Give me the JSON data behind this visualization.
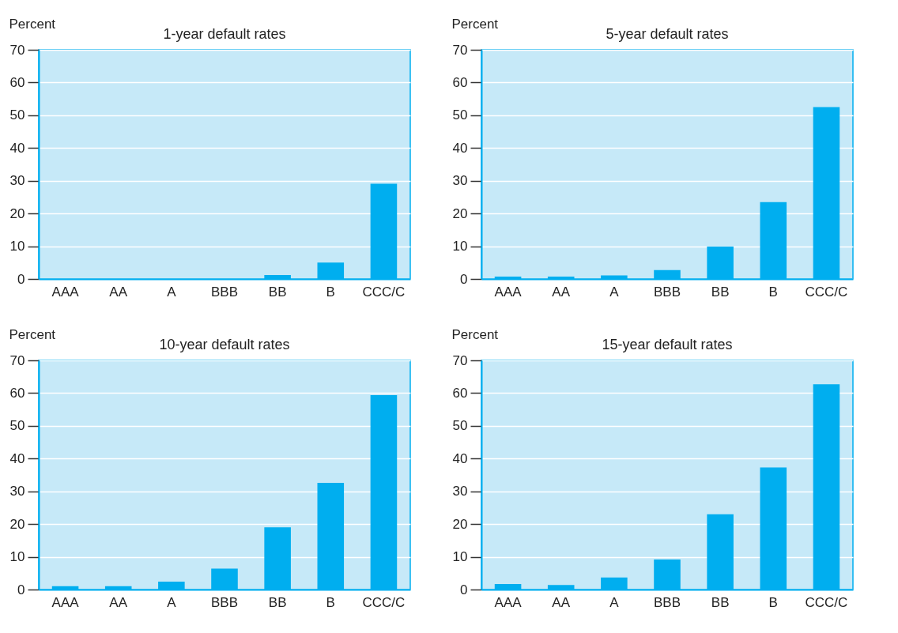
{
  "chart_data": [
    {
      "type": "bar",
      "title": "1-year default rates",
      "ylabel": "Percent",
      "categories": [
        "AAA",
        "AA",
        "A",
        "BBB",
        "BB",
        "B",
        "CCC/C"
      ],
      "values": [
        0,
        0,
        0,
        0,
        1.2,
        5.0,
        29.1
      ],
      "color": "#00aeef",
      "ylim": [
        0,
        70
      ],
      "yticks": [
        0,
        10,
        20,
        30,
        40,
        50,
        60,
        70
      ],
      "grid": "y"
    },
    {
      "type": "bar",
      "title": "5-year default rates",
      "ylabel": "Percent",
      "categories": [
        "AAA",
        "AA",
        "A",
        "BBB",
        "BB",
        "B",
        "CCC/C"
      ],
      "values": [
        0.7,
        0.7,
        1.1,
        2.7,
        9.9,
        23.5,
        52.5
      ],
      "color": "#00aeef",
      "ylim": [
        0,
        70
      ],
      "yticks": [
        0,
        10,
        20,
        30,
        40,
        50,
        60,
        70
      ],
      "grid": "y"
    },
    {
      "type": "bar",
      "title": "10-year default rates",
      "ylabel": "Percent",
      "categories": [
        "AAA",
        "AA",
        "A",
        "BBB",
        "BB",
        "B",
        "CCC/C"
      ],
      "values": [
        1.0,
        1.0,
        2.4,
        6.4,
        19.0,
        32.6,
        59.4
      ],
      "color": "#00aeef",
      "ylim": [
        0,
        70
      ],
      "yticks": [
        0,
        10,
        20,
        30,
        40,
        50,
        60,
        70
      ],
      "grid": "y"
    },
    {
      "type": "bar",
      "title": "15-year default rates",
      "ylabel": "Percent",
      "categories": [
        "AAA",
        "AA",
        "A",
        "BBB",
        "BB",
        "B",
        "CCC/C"
      ],
      "values": [
        1.7,
        1.4,
        3.7,
        9.2,
        23.0,
        37.3,
        62.7
      ],
      "color": "#00aeef",
      "ylim": [
        0,
        70
      ],
      "yticks": [
        0,
        10,
        20,
        30,
        40,
        50,
        60,
        70
      ],
      "grid": "y"
    }
  ]
}
